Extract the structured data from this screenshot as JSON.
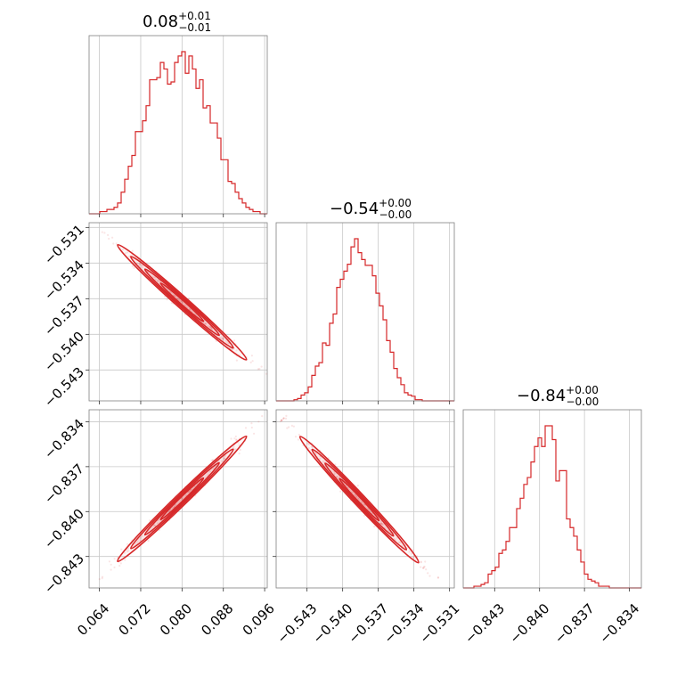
{
  "chart_data": {
    "type": "corner",
    "color": "#d62728",
    "params": [
      {
        "title": {
          "value": "0.08",
          "plus": "+0.01",
          "minus": "−0.01"
        },
        "range": [
          0.062,
          0.0965
        ],
        "ticks": [
          0.064,
          0.072,
          0.08,
          0.088,
          0.096
        ],
        "tick_labels": [
          "0.064",
          "0.072",
          "0.080",
          "0.088",
          "0.096"
        ]
      },
      {
        "title": {
          "value": "−0.54",
          "plus": "+0.00",
          "minus": "−0.00"
        },
        "range": [
          -0.5456,
          -0.5306
        ],
        "ticks": [
          -0.543,
          -0.54,
          -0.537,
          -0.534,
          -0.531
        ],
        "tick_labels": [
          "−0.543",
          "−0.540",
          "−0.537",
          "−0.534",
          "−0.531"
        ]
      },
      {
        "title": {
          "value": "−0.84",
          "plus": "+0.00",
          "minus": "−0.00"
        },
        "range": [
          -0.8451,
          -0.8332
        ],
        "ticks": [
          -0.843,
          -0.84,
          -0.837,
          -0.834
        ],
        "tick_labels": [
          "−0.843",
          "−0.840",
          "−0.837",
          "−0.834"
        ]
      }
    ],
    "histograms": [
      {
        "param": 0,
        "bins": [
          0.062,
          0.0965
        ],
        "counts": [
          0,
          0,
          0,
          1,
          1,
          2,
          2,
          3,
          5,
          10,
          16,
          22,
          27,
          38,
          38,
          43,
          50,
          62,
          62,
          63,
          70,
          67,
          60,
          61,
          70,
          73,
          75,
          65,
          73,
          67,
          58,
          62,
          49,
          50,
          42,
          42,
          35,
          25,
          25,
          15,
          14,
          10,
          7,
          5,
          3,
          2,
          1,
          1,
          0,
          0
        ]
      },
      {
        "param": 1,
        "bins": [
          -0.5456,
          -0.5306
        ],
        "counts": [
          0,
          0,
          0,
          0,
          0,
          1,
          2,
          5,
          7,
          12,
          22,
          30,
          33,
          50,
          48,
          67,
          75,
          98,
          105,
          112,
          118,
          133,
          140,
          128,
          122,
          117,
          117,
          108,
          93,
          82,
          70,
          52,
          42,
          28,
          20,
          14,
          7,
          5,
          4,
          1,
          1,
          0,
          0,
          0,
          0,
          0,
          0,
          0,
          0,
          0
        ]
      },
      {
        "param": 2,
        "bins": [
          -0.8451,
          -0.8332
        ],
        "counts": [
          0,
          0,
          0,
          1,
          1,
          2,
          3,
          8,
          10,
          12,
          20,
          22,
          27,
          35,
          35,
          46,
          52,
          60,
          64,
          73,
          82,
          87,
          82,
          94,
          94,
          86,
          62,
          68,
          68,
          40,
          35,
          30,
          22,
          15,
          8,
          5,
          4,
          3,
          1,
          1,
          1,
          0,
          0,
          0,
          0,
          0,
          0,
          0,
          0,
          0
        ]
      }
    ],
    "scatter_panels": [
      {
        "row": 1,
        "col": 0,
        "correlation": "negative",
        "x_span": [
          0.064,
          0.096
        ],
        "y_span": [
          -0.5311,
          -0.5435
        ]
      },
      {
        "row": 2,
        "col": 0,
        "correlation": "positive",
        "x_span": [
          0.064,
          0.096
        ],
        "y_span": [
          -0.8445,
          -0.8338
        ]
      },
      {
        "row": 2,
        "col": 1,
        "correlation": "negative",
        "x_span": [
          -0.545,
          -0.5322
        ],
        "y_span": [
          -0.8338,
          -0.8446
        ]
      }
    ],
    "grid": true
  }
}
